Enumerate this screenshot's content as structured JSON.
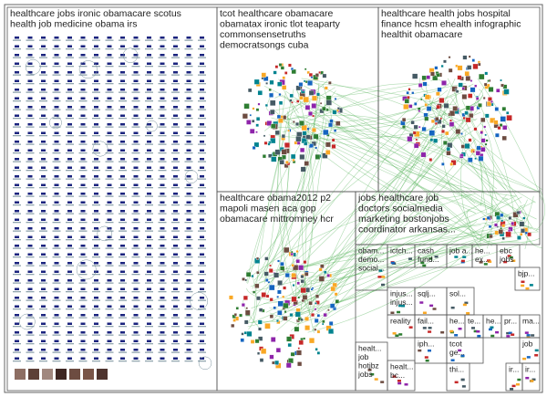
{
  "groups": [
    {
      "label_lines": [
        "healthcare jobs ironic obamacare scotus",
        "health job medicine obama irs"
      ]
    },
    {
      "label_lines": [
        "tcot healthcare obamacare",
        "obamatax ironic tlot teaparty",
        "commonsensetruths",
        "democratsongs cuba"
      ]
    },
    {
      "label_lines": [
        "healthcare health jobs hospital",
        "finance hcsm ehealth infographic",
        "healthit obamacare"
      ]
    },
    {
      "label_lines": [
        "healthcare obama2012 p2",
        "mapoli masen aca gop",
        "obamacare mittromney hcr"
      ]
    },
    {
      "label_lines": [
        "jobs healthcare job",
        "doctors socialmedia",
        "marketing bostonjobs",
        "coordinator arkansas..."
      ]
    },
    {
      "label_lines": [
        "obam...",
        "demo...",
        "social..."
      ]
    },
    {
      "label_lines": [
        "ictch..."
      ]
    },
    {
      "label_lines": [
        "cash",
        "fund..."
      ]
    },
    {
      "label_lines": [
        "job a..."
      ]
    },
    {
      "label_lines": [
        "he...",
        "ex..."
      ]
    },
    {
      "label_lines": [
        "ebc",
        "jobs"
      ]
    },
    {
      "label_lines": [
        "bjp..."
      ]
    },
    {
      "label_lines": [
        "injus...",
        "injus..."
      ]
    },
    {
      "label_lines": [
        "sqlj..."
      ]
    },
    {
      "label_lines": [
        "sol..."
      ]
    },
    {
      "label_lines": [
        "reality"
      ]
    },
    {
      "label_lines": [
        "fail..."
      ]
    },
    {
      "label_lines": [
        "he..."
      ]
    },
    {
      "label_lines": [
        "te..."
      ]
    },
    {
      "label_lines": [
        "he..."
      ]
    },
    {
      "label_lines": [
        "pr..."
      ]
    },
    {
      "label_lines": [
        "ma..."
      ]
    },
    {
      "label_lines": [
        "healt...",
        "job",
        "hotjbz",
        "jobs"
      ]
    },
    {
      "label_lines": [
        "iph..."
      ]
    },
    {
      "label_lines": [
        "healt...",
        "bc..."
      ]
    },
    {
      "label_lines": [
        "tcot",
        "ge..."
      ]
    },
    {
      "label_lines": [
        "thi..."
      ]
    },
    {
      "label_lines": [
        "job"
      ]
    },
    {
      "label_lines": [
        "ir..."
      ]
    },
    {
      "label_lines": [
        "ir..."
      ]
    }
  ]
}
